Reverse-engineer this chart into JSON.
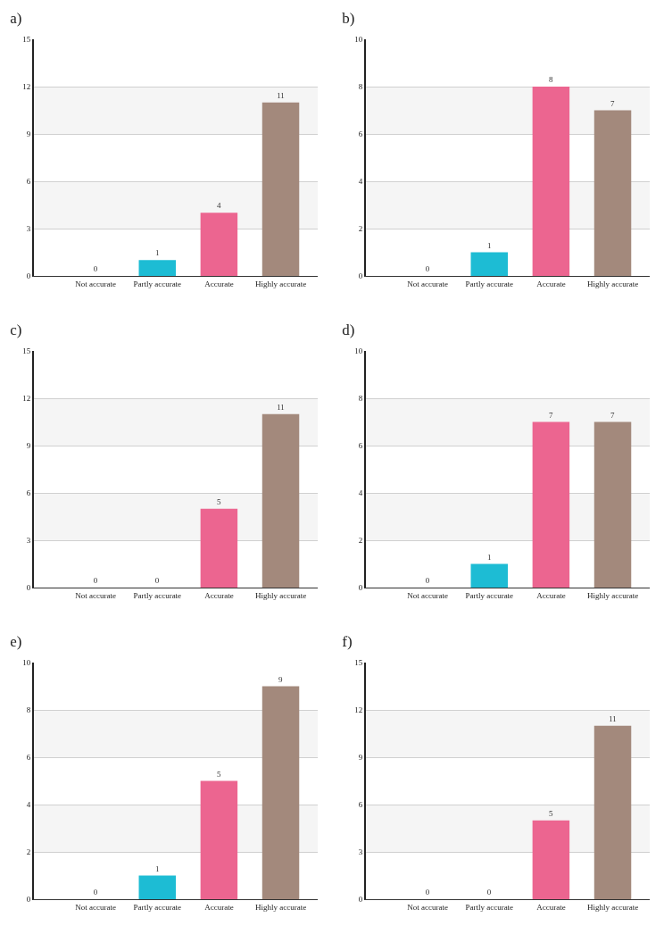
{
  "chart_data": [
    {
      "type": "bar",
      "title": "a)",
      "categories": [
        "Not accurate",
        "Partly accurate",
        "Accurate",
        "Highly accurate"
      ],
      "values": [
        0,
        1,
        4,
        11
      ],
      "colors": [
        "#c8c8c8",
        "#1dbcd4",
        "#ec6590",
        "#a3897c"
      ],
      "ylim": [
        0,
        15
      ],
      "yticks": [
        0,
        3,
        6,
        9,
        12,
        15
      ],
      "grid": "y",
      "data_labels": true,
      "bands": [
        {
          "axis": "y",
          "from": 3,
          "to": 6,
          "color": "#f5f5f5"
        },
        {
          "axis": "y",
          "from": 9,
          "to": 12,
          "color": "#f5f5f5"
        }
      ]
    },
    {
      "type": "bar",
      "title": "b)",
      "categories": [
        "Not accurate",
        "Partly accurate",
        "Accurate",
        "Highly accurate"
      ],
      "values": [
        0,
        1,
        8,
        7
      ],
      "colors": [
        "#c8c8c8",
        "#1dbcd4",
        "#ec6590",
        "#a3897c"
      ],
      "ylim": [
        0,
        10
      ],
      "yticks": [
        0,
        2,
        4,
        6,
        8,
        10
      ],
      "grid": "y",
      "data_labels": true,
      "bands": [
        {
          "axis": "y",
          "from": 2,
          "to": 4,
          "color": "#f5f5f5"
        },
        {
          "axis": "y",
          "from": 6,
          "to": 8,
          "color": "#f5f5f5"
        }
      ]
    },
    {
      "type": "bar",
      "title": "c)",
      "categories": [
        "Not accurate",
        "Partly accurate",
        "Accurate",
        "Highly accurate"
      ],
      "values": [
        0,
        0,
        5,
        11
      ],
      "colors": [
        "#c8c8c8",
        "#1dbcd4",
        "#ec6590",
        "#a3897c"
      ],
      "ylim": [
        0,
        15
      ],
      "yticks": [
        0,
        3,
        6,
        9,
        12,
        15
      ],
      "grid": "y",
      "data_labels": true,
      "bands": [
        {
          "axis": "y",
          "from": 3,
          "to": 6,
          "color": "#f5f5f5"
        },
        {
          "axis": "y",
          "from": 9,
          "to": 12,
          "color": "#f5f5f5"
        }
      ]
    },
    {
      "type": "bar",
      "title": "d)",
      "categories": [
        "Not accurate",
        "Partly accurate",
        "Accurate",
        "Highly accurate"
      ],
      "values": [
        0,
        1,
        7,
        7
      ],
      "colors": [
        "#c8c8c8",
        "#1dbcd4",
        "#ec6590",
        "#a3897c"
      ],
      "ylim": [
        0,
        10
      ],
      "yticks": [
        0,
        2,
        4,
        6,
        8,
        10
      ],
      "grid": "y",
      "data_labels": true,
      "bands": [
        {
          "axis": "y",
          "from": 2,
          "to": 4,
          "color": "#f5f5f5"
        },
        {
          "axis": "y",
          "from": 6,
          "to": 8,
          "color": "#f5f5f5"
        }
      ]
    },
    {
      "type": "bar",
      "title": "e)",
      "categories": [
        "Not accurate",
        "Partly accurate",
        "Accurate",
        "Highly accurate"
      ],
      "values": [
        0,
        1,
        5,
        9
      ],
      "colors": [
        "#c8c8c8",
        "#1dbcd4",
        "#ec6590",
        "#a3897c"
      ],
      "ylim": [
        0,
        10
      ],
      "yticks": [
        0,
        2,
        4,
        6,
        8,
        10
      ],
      "grid": "y",
      "data_labels": true,
      "bands": [
        {
          "axis": "y",
          "from": 2,
          "to": 4,
          "color": "#f5f5f5"
        },
        {
          "axis": "y",
          "from": 6,
          "to": 8,
          "color": "#f5f5f5"
        }
      ]
    },
    {
      "type": "bar",
      "title": "f)",
      "categories": [
        "Not accurate",
        "Partly accurate",
        "Accurate",
        "Highly accurate"
      ],
      "values": [
        0,
        0,
        5,
        11
      ],
      "colors": [
        "#c8c8c8",
        "#1dbcd4",
        "#ec6590",
        "#a3897c"
      ],
      "ylim": [
        0,
        15
      ],
      "yticks": [
        0,
        3,
        6,
        9,
        12,
        15
      ],
      "grid": "y",
      "data_labels": true,
      "bands": [
        {
          "axis": "y",
          "from": 3,
          "to": 6,
          "color": "#f5f5f5"
        },
        {
          "axis": "y",
          "from": 9,
          "to": 12,
          "color": "#f5f5f5"
        }
      ]
    }
  ]
}
